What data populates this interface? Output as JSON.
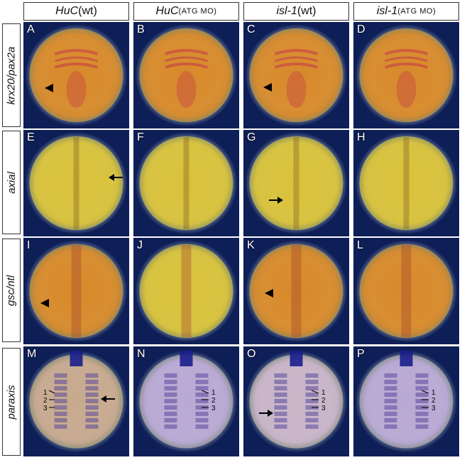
{
  "columns": [
    {
      "gene": "HuC",
      "condition": "(wt)",
      "cond_smallcaps": false
    },
    {
      "gene": "HuC",
      "condition": "(ATG MO)",
      "cond_smallcaps": true
    },
    {
      "gene": "isl-1",
      "condition": "(wt)",
      "cond_smallcaps": false
    },
    {
      "gene": "isl-1",
      "condition": "(ATG MO)",
      "cond_smallcaps": true
    }
  ],
  "rows": [
    {
      "marker": "krx20/pax2a"
    },
    {
      "marker": "axial"
    },
    {
      "marker": "gsc/ntl"
    },
    {
      "marker": "paraxis"
    }
  ],
  "panel_letters": [
    "A",
    "B",
    "C",
    "D",
    "E",
    "F",
    "G",
    "H",
    "I",
    "J",
    "K",
    "L",
    "M",
    "N",
    "O",
    "P"
  ],
  "somite_labels": [
    "1",
    "2",
    "3"
  ],
  "colors": {
    "background_blue": "#0e1e56",
    "embryo_yellow": "#d9c23a",
    "embryo_orange": "#d88a2a",
    "embryo_lavender": "#b9a9d4",
    "stain_red": "#c4364a",
    "stain_purple": "#5a4a9a",
    "arrow_black": "#000000"
  }
}
